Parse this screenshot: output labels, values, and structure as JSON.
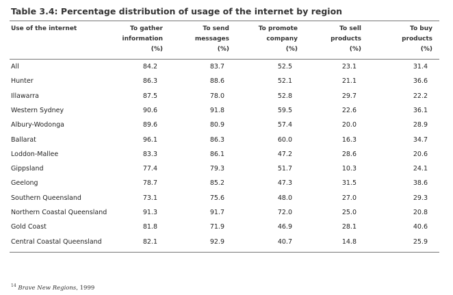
{
  "title": "Table 3.4: Percentage distribution of usage of the internet by region",
  "table": {
    "header": [
      [
        "Use of the internet"
      ],
      [
        "To gather",
        "information",
        "(%)"
      ],
      [
        "To send",
        "messages",
        "(%)"
      ],
      [
        "To promote",
        "company",
        "(%)"
      ],
      [
        "To sell",
        "products",
        "(%)"
      ],
      [
        "To buy",
        "products",
        "(%)"
      ]
    ],
    "rows": [
      [
        "All",
        "84.2",
        "83.7",
        "52.5",
        "23.1",
        "31.4"
      ],
      [
        "Hunter",
        "86.3",
        "88.6",
        "52.1",
        "21.1",
        "36.6"
      ],
      [
        "Illawarra",
        "87.5",
        "78.0",
        "52.8",
        "29.7",
        "22.2"
      ],
      [
        "Western Sydney",
        "90.6",
        "91.8",
        "59.5",
        "22.6",
        "36.1"
      ],
      [
        "Albury-Wodonga",
        "89.6",
        "80.9",
        "57.4",
        "20.0",
        "28.9"
      ],
      [
        "Ballarat",
        "96.1",
        "86.3",
        "60.0",
        "16.3",
        "34.7"
      ],
      [
        "Loddon-Mallee",
        "83.3",
        "86.1",
        "47.2",
        "28.6",
        "20.6"
      ],
      [
        "Gippsland",
        "77.4",
        "79.3",
        "51.7",
        "10.3",
        "24.1"
      ],
      [
        "Geelong",
        "78.7",
        "85.2",
        "47.3",
        "31.5",
        "38.6"
      ],
      [
        "Southern Queensland",
        "73.1",
        "75.6",
        "48.0",
        "27.0",
        "29.3"
      ],
      [
        "Northern Coastal Queensland",
        "91.3",
        "91.7",
        "72.0",
        "25.0",
        "20.8"
      ],
      [
        "Gold Coast",
        "81.8",
        "71.9",
        "46.9",
        "28.1",
        "40.6"
      ],
      [
        "Central Coastal Queensland",
        "82.1",
        "92.9",
        "40.7",
        "14.8",
        "25.9"
      ]
    ]
  },
  "footnote": {
    "marker": "14",
    "source": "Brave New Regions",
    "rest": ", 1999"
  }
}
